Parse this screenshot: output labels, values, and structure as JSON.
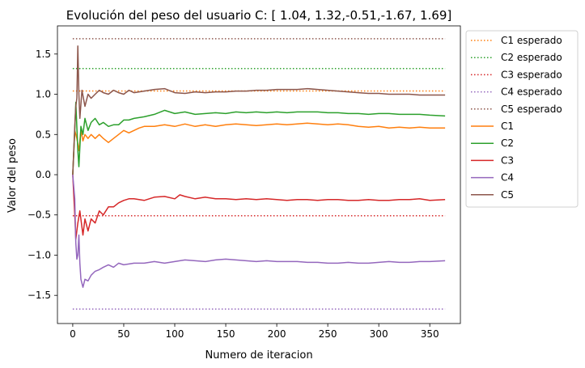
{
  "chart_data": {
    "type": "line",
    "title": "Evolución del peso del usuario C: [ 1.04, 1.32,-0.51,-1.67, 1.69]",
    "xlabel": "Numero de iteracion",
    "ylabel": "Valor del peso",
    "xlim": [
      -15,
      380
    ],
    "ylim": [
      -1.85,
      1.85
    ],
    "xticks": [
      0,
      50,
      100,
      150,
      200,
      250,
      300,
      350
    ],
    "yticks": [
      -1.5,
      -1.0,
      -0.5,
      0.0,
      0.5,
      1.0,
      1.5
    ],
    "ytick_labels": [
      "−1.5",
      "−1.0",
      "−0.5",
      "0.0",
      "0.5",
      "1.0",
      "1.5"
    ],
    "legend_position": "outside-right-top",
    "grid": false,
    "expected_series": [
      {
        "name": "C1 esperado",
        "value": 1.04,
        "x": [
          0,
          365
        ],
        "color": "#ff7f0e"
      },
      {
        "name": "C2 esperado",
        "value": 1.32,
        "x": [
          0,
          365
        ],
        "color": "#2ca02c"
      },
      {
        "name": "C3 esperado",
        "value": -0.51,
        "x": [
          0,
          365
        ],
        "color": "#d62728"
      },
      {
        "name": "C4 esperado",
        "value": -1.67,
        "x": [
          0,
          365
        ],
        "color": "#9467bd"
      },
      {
        "name": "C5 esperado",
        "value": 1.69,
        "x": [
          0,
          365
        ],
        "color": "#8c564b"
      }
    ],
    "series": [
      {
        "name": "C1",
        "color": "#ff7f0e",
        "points": [
          [
            0,
            0.0
          ],
          [
            2,
            0.55
          ],
          [
            4,
            0.45
          ],
          [
            6,
            0.3
          ],
          [
            8,
            0.55
          ],
          [
            10,
            0.42
          ],
          [
            12,
            0.5
          ],
          [
            15,
            0.45
          ],
          [
            18,
            0.5
          ],
          [
            22,
            0.45
          ],
          [
            26,
            0.5
          ],
          [
            30,
            0.45
          ],
          [
            35,
            0.4
          ],
          [
            40,
            0.45
          ],
          [
            45,
            0.5
          ],
          [
            50,
            0.55
          ],
          [
            55,
            0.52
          ],
          [
            60,
            0.55
          ],
          [
            65,
            0.58
          ],
          [
            70,
            0.6
          ],
          [
            80,
            0.6
          ],
          [
            90,
            0.62
          ],
          [
            100,
            0.6
          ],
          [
            110,
            0.63
          ],
          [
            120,
            0.6
          ],
          [
            130,
            0.62
          ],
          [
            140,
            0.6
          ],
          [
            150,
            0.62
          ],
          [
            160,
            0.63
          ],
          [
            170,
            0.62
          ],
          [
            180,
            0.61
          ],
          [
            190,
            0.62
          ],
          [
            200,
            0.63
          ],
          [
            210,
            0.62
          ],
          [
            220,
            0.63
          ],
          [
            230,
            0.64
          ],
          [
            240,
            0.63
          ],
          [
            250,
            0.62
          ],
          [
            260,
            0.63
          ],
          [
            270,
            0.62
          ],
          [
            280,
            0.6
          ],
          [
            290,
            0.59
          ],
          [
            300,
            0.6
          ],
          [
            310,
            0.58
          ],
          [
            320,
            0.59
          ],
          [
            330,
            0.58
          ],
          [
            340,
            0.59
          ],
          [
            350,
            0.58
          ],
          [
            365,
            0.58
          ]
        ]
      },
      {
        "name": "C2",
        "color": "#2ca02c",
        "points": [
          [
            0,
            0.0
          ],
          [
            2,
            0.55
          ],
          [
            3,
            0.9
          ],
          [
            5,
            0.3
          ],
          [
            6,
            0.1
          ],
          [
            8,
            0.6
          ],
          [
            10,
            0.5
          ],
          [
            12,
            0.7
          ],
          [
            15,
            0.55
          ],
          [
            18,
            0.65
          ],
          [
            22,
            0.7
          ],
          [
            26,
            0.62
          ],
          [
            30,
            0.65
          ],
          [
            35,
            0.6
          ],
          [
            40,
            0.62
          ],
          [
            45,
            0.62
          ],
          [
            50,
            0.68
          ],
          [
            55,
            0.68
          ],
          [
            60,
            0.7
          ],
          [
            70,
            0.72
          ],
          [
            80,
            0.75
          ],
          [
            90,
            0.8
          ],
          [
            100,
            0.76
          ],
          [
            110,
            0.78
          ],
          [
            120,
            0.75
          ],
          [
            130,
            0.76
          ],
          [
            140,
            0.77
          ],
          [
            150,
            0.76
          ],
          [
            160,
            0.78
          ],
          [
            170,
            0.77
          ],
          [
            180,
            0.78
          ],
          [
            190,
            0.77
          ],
          [
            200,
            0.78
          ],
          [
            210,
            0.77
          ],
          [
            220,
            0.78
          ],
          [
            230,
            0.78
          ],
          [
            240,
            0.78
          ],
          [
            250,
            0.77
          ],
          [
            260,
            0.77
          ],
          [
            270,
            0.76
          ],
          [
            280,
            0.76
          ],
          [
            290,
            0.75
          ],
          [
            300,
            0.76
          ],
          [
            310,
            0.76
          ],
          [
            320,
            0.75
          ],
          [
            330,
            0.75
          ],
          [
            340,
            0.75
          ],
          [
            350,
            0.74
          ],
          [
            365,
            0.73
          ]
        ]
      },
      {
        "name": "C3",
        "color": "#d62728",
        "points": [
          [
            0,
            0.0
          ],
          [
            2,
            -0.5
          ],
          [
            3,
            -0.8
          ],
          [
            5,
            -0.6
          ],
          [
            7,
            -0.45
          ],
          [
            10,
            -0.75
          ],
          [
            12,
            -0.55
          ],
          [
            15,
            -0.7
          ],
          [
            18,
            -0.55
          ],
          [
            22,
            -0.6
          ],
          [
            26,
            -0.45
          ],
          [
            30,
            -0.5
          ],
          [
            35,
            -0.4
          ],
          [
            40,
            -0.4
          ],
          [
            45,
            -0.35
          ],
          [
            50,
            -0.32
          ],
          [
            55,
            -0.3
          ],
          [
            60,
            -0.3
          ],
          [
            70,
            -0.32
          ],
          [
            80,
            -0.28
          ],
          [
            90,
            -0.27
          ],
          [
            100,
            -0.3
          ],
          [
            105,
            -0.25
          ],
          [
            110,
            -0.27
          ],
          [
            120,
            -0.3
          ],
          [
            130,
            -0.28
          ],
          [
            140,
            -0.3
          ],
          [
            150,
            -0.3
          ],
          [
            160,
            -0.31
          ],
          [
            170,
            -0.3
          ],
          [
            180,
            -0.31
          ],
          [
            190,
            -0.3
          ],
          [
            200,
            -0.31
          ],
          [
            210,
            -0.32
          ],
          [
            220,
            -0.31
          ],
          [
            230,
            -0.31
          ],
          [
            240,
            -0.32
          ],
          [
            250,
            -0.31
          ],
          [
            260,
            -0.31
          ],
          [
            270,
            -0.32
          ],
          [
            280,
            -0.32
          ],
          [
            290,
            -0.31
          ],
          [
            300,
            -0.32
          ],
          [
            310,
            -0.32
          ],
          [
            320,
            -0.31
          ],
          [
            330,
            -0.31
          ],
          [
            340,
            -0.3
          ],
          [
            350,
            -0.32
          ],
          [
            365,
            -0.31
          ]
        ]
      },
      {
        "name": "C4",
        "color": "#9467bd",
        "points": [
          [
            0,
            0.0
          ],
          [
            2,
            -0.3
          ],
          [
            3,
            -0.85
          ],
          [
            4,
            -1.05
          ],
          [
            5,
            -1.0
          ],
          [
            6,
            -0.75
          ],
          [
            7,
            -1.1
          ],
          [
            8,
            -1.3
          ],
          [
            10,
            -1.4
          ],
          [
            12,
            -1.3
          ],
          [
            15,
            -1.32
          ],
          [
            18,
            -1.25
          ],
          [
            22,
            -1.2
          ],
          [
            26,
            -1.18
          ],
          [
            30,
            -1.15
          ],
          [
            35,
            -1.12
          ],
          [
            40,
            -1.15
          ],
          [
            45,
            -1.1
          ],
          [
            50,
            -1.12
          ],
          [
            60,
            -1.1
          ],
          [
            70,
            -1.1
          ],
          [
            80,
            -1.08
          ],
          [
            90,
            -1.1
          ],
          [
            100,
            -1.08
          ],
          [
            110,
            -1.06
          ],
          [
            120,
            -1.07
          ],
          [
            130,
            -1.08
          ],
          [
            140,
            -1.06
          ],
          [
            150,
            -1.05
          ],
          [
            160,
            -1.06
          ],
          [
            170,
            -1.07
          ],
          [
            180,
            -1.08
          ],
          [
            190,
            -1.07
          ],
          [
            200,
            -1.08
          ],
          [
            210,
            -1.08
          ],
          [
            220,
            -1.08
          ],
          [
            230,
            -1.09
          ],
          [
            240,
            -1.09
          ],
          [
            250,
            -1.1
          ],
          [
            260,
            -1.1
          ],
          [
            270,
            -1.09
          ],
          [
            280,
            -1.1
          ],
          [
            290,
            -1.1
          ],
          [
            300,
            -1.09
          ],
          [
            310,
            -1.08
          ],
          [
            320,
            -1.09
          ],
          [
            330,
            -1.09
          ],
          [
            340,
            -1.08
          ],
          [
            350,
            -1.08
          ],
          [
            365,
            -1.07
          ]
        ]
      },
      {
        "name": "C5",
        "color": "#8c564b",
        "points": [
          [
            0,
            0.0
          ],
          [
            2,
            0.6
          ],
          [
            3,
            0.85
          ],
          [
            4,
            0.95
          ],
          [
            5,
            1.6
          ],
          [
            6,
            1.0
          ],
          [
            7,
            0.7
          ],
          [
            9,
            1.05
          ],
          [
            12,
            0.85
          ],
          [
            15,
            1.0
          ],
          [
            18,
            0.95
          ],
          [
            22,
            1.0
          ],
          [
            26,
            1.05
          ],
          [
            30,
            1.02
          ],
          [
            35,
            1.0
          ],
          [
            40,
            1.05
          ],
          [
            45,
            1.02
          ],
          [
            50,
            1.0
          ],
          [
            55,
            1.05
          ],
          [
            60,
            1.02
          ],
          [
            70,
            1.04
          ],
          [
            80,
            1.06
          ],
          [
            90,
            1.07
          ],
          [
            100,
            1.02
          ],
          [
            110,
            1.01
          ],
          [
            120,
            1.03
          ],
          [
            130,
            1.02
          ],
          [
            140,
            1.03
          ],
          [
            150,
            1.03
          ],
          [
            160,
            1.04
          ],
          [
            170,
            1.04
          ],
          [
            180,
            1.05
          ],
          [
            190,
            1.05
          ],
          [
            200,
            1.06
          ],
          [
            210,
            1.06
          ],
          [
            220,
            1.06
          ],
          [
            230,
            1.07
          ],
          [
            240,
            1.06
          ],
          [
            250,
            1.05
          ],
          [
            260,
            1.04
          ],
          [
            270,
            1.03
          ],
          [
            280,
            1.02
          ],
          [
            290,
            1.01
          ],
          [
            300,
            1.01
          ],
          [
            310,
            1.0
          ],
          [
            320,
            1.0
          ],
          [
            330,
            1.0
          ],
          [
            340,
            0.99
          ],
          [
            350,
            0.99
          ],
          [
            365,
            0.99
          ]
        ]
      }
    ]
  }
}
